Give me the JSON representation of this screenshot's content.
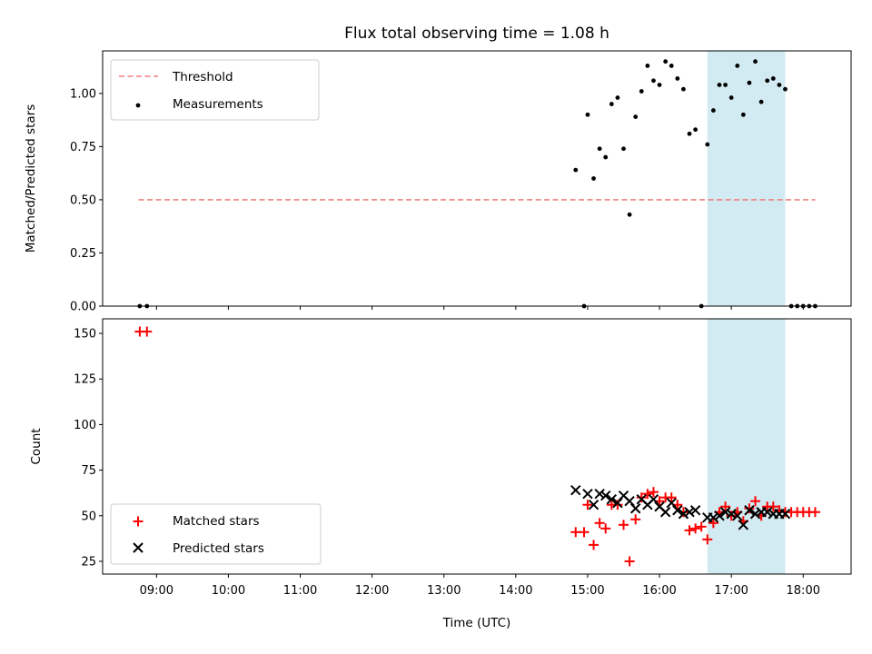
{
  "chart_data": [
    {
      "type": "scatter",
      "title": "Flux total observing time = 1.08 h",
      "xlabel": "",
      "ylabel": "Matched/Predicted stars",
      "xlim": [
        "08:15",
        "18:40"
      ],
      "ylim": [
        0,
        1.2
      ],
      "ytick_values": [
        0.0,
        0.25,
        0.5,
        0.75,
        1.0
      ],
      "ytick_labels": [
        "0.00",
        "0.25",
        "0.50",
        "0.75",
        "1.00"
      ],
      "legend_position": "upper-left",
      "highlight_span": {
        "start": "16:40",
        "end": "17:45",
        "color": "#add8e6"
      },
      "series": [
        {
          "name": "Threshold",
          "kind": "line",
          "style": "dashed",
          "color": "#f08080",
          "points": [
            {
              "x": "08:45",
              "y": 0.5
            },
            {
              "x": "18:10",
              "y": 0.5
            }
          ]
        },
        {
          "name": "Measurements",
          "kind": "points",
          "color": "#000000",
          "points": [
            {
              "x": "08:46",
              "y": 0.0
            },
            {
              "x": "08:52",
              "y": 0.0
            },
            {
              "x": "14:50",
              "y": 0.64
            },
            {
              "x": "14:57",
              "y": 0.0
            },
            {
              "x": "15:00",
              "y": 0.9
            },
            {
              "x": "15:05",
              "y": 0.6
            },
            {
              "x": "15:10",
              "y": 0.74
            },
            {
              "x": "15:15",
              "y": 0.7
            },
            {
              "x": "15:20",
              "y": 0.95
            },
            {
              "x": "15:25",
              "y": 0.98
            },
            {
              "x": "15:30",
              "y": 0.74
            },
            {
              "x": "15:35",
              "y": 0.43
            },
            {
              "x": "15:40",
              "y": 0.89
            },
            {
              "x": "15:45",
              "y": 1.01
            },
            {
              "x": "15:50",
              "y": 1.13
            },
            {
              "x": "15:55",
              "y": 1.06
            },
            {
              "x": "16:00",
              "y": 1.04
            },
            {
              "x": "16:05",
              "y": 1.15
            },
            {
              "x": "16:10",
              "y": 1.13
            },
            {
              "x": "16:15",
              "y": 1.07
            },
            {
              "x": "16:20",
              "y": 1.02
            },
            {
              "x": "16:25",
              "y": 0.81
            },
            {
              "x": "16:30",
              "y": 0.83
            },
            {
              "x": "16:35",
              "y": 0.0
            },
            {
              "x": "16:40",
              "y": 0.76
            },
            {
              "x": "16:45",
              "y": 0.92
            },
            {
              "x": "16:50",
              "y": 1.04
            },
            {
              "x": "16:55",
              "y": 1.04
            },
            {
              "x": "17:00",
              "y": 0.98
            },
            {
              "x": "17:05",
              "y": 1.13
            },
            {
              "x": "17:10",
              "y": 0.9
            },
            {
              "x": "17:15",
              "y": 1.05
            },
            {
              "x": "17:20",
              "y": 1.15
            },
            {
              "x": "17:25",
              "y": 0.96
            },
            {
              "x": "17:30",
              "y": 1.06
            },
            {
              "x": "17:35",
              "y": 1.07
            },
            {
              "x": "17:40",
              "y": 1.04
            },
            {
              "x": "17:45",
              "y": 1.02
            },
            {
              "x": "17:50",
              "y": 0.0
            },
            {
              "x": "17:55",
              "y": 0.0
            },
            {
              "x": "18:00",
              "y": 0.0
            },
            {
              "x": "18:05",
              "y": 0.0
            },
            {
              "x": "18:10",
              "y": 0.0
            }
          ]
        }
      ]
    },
    {
      "type": "scatter",
      "title": "",
      "xlabel": "Time (UTC)",
      "ylabel": "Count",
      "xlim": [
        "08:15",
        "18:40"
      ],
      "ylim": [
        18,
        158
      ],
      "ytick_values": [
        25,
        50,
        75,
        100,
        125,
        150
      ],
      "ytick_labels": [
        "25",
        "50",
        "75",
        "100",
        "125",
        "150"
      ],
      "xtick_values": [
        "09:00",
        "10:00",
        "11:00",
        "12:00",
        "13:00",
        "14:00",
        "15:00",
        "16:00",
        "17:00",
        "18:00"
      ],
      "xtick_labels": [
        "09:00",
        "10:00",
        "11:00",
        "12:00",
        "13:00",
        "14:00",
        "15:00",
        "16:00",
        "17:00",
        "18:00"
      ],
      "legend_position": "lower-left",
      "highlight_span": {
        "start": "16:40",
        "end": "17:45",
        "color": "#add8e6"
      },
      "series": [
        {
          "name": "Matched stars",
          "marker": "plus",
          "color": "#ff0000",
          "points": [
            {
              "x": "08:46",
              "y": 151
            },
            {
              "x": "08:52",
              "y": 151
            },
            {
              "x": "14:50",
              "y": 41
            },
            {
              "x": "14:57",
              "y": 41
            },
            {
              "x": "15:00",
              "y": 56
            },
            {
              "x": "15:05",
              "y": 34
            },
            {
              "x": "15:10",
              "y": 46
            },
            {
              "x": "15:15",
              "y": 43
            },
            {
              "x": "15:20",
              "y": 56
            },
            {
              "x": "15:25",
              "y": 56
            },
            {
              "x": "15:30",
              "y": 45
            },
            {
              "x": "15:35",
              "y": 25
            },
            {
              "x": "15:40",
              "y": 48
            },
            {
              "x": "15:45",
              "y": 60
            },
            {
              "x": "15:50",
              "y": 62
            },
            {
              "x": "15:55",
              "y": 63
            },
            {
              "x": "16:00",
              "y": 58
            },
            {
              "x": "16:05",
              "y": 60
            },
            {
              "x": "16:10",
              "y": 60
            },
            {
              "x": "16:15",
              "y": 56
            },
            {
              "x": "16:20",
              "y": 52
            },
            {
              "x": "16:25",
              "y": 42
            },
            {
              "x": "16:30",
              "y": 43
            },
            {
              "x": "16:35",
              "y": 44
            },
            {
              "x": "16:40",
              "y": 37
            },
            {
              "x": "16:45",
              "y": 46
            },
            {
              "x": "16:50",
              "y": 52
            },
            {
              "x": "16:55",
              "y": 55
            },
            {
              "x": "17:00",
              "y": 50
            },
            {
              "x": "17:05",
              "y": 52
            },
            {
              "x": "17:10",
              "y": 47
            },
            {
              "x": "17:15",
              "y": 54
            },
            {
              "x": "17:20",
              "y": 58
            },
            {
              "x": "17:25",
              "y": 50
            },
            {
              "x": "17:30",
              "y": 55
            },
            {
              "x": "17:35",
              "y": 55
            },
            {
              "x": "17:40",
              "y": 53
            },
            {
              "x": "17:45",
              "y": 52
            },
            {
              "x": "17:50",
              "y": 52
            },
            {
              "x": "17:55",
              "y": 52
            },
            {
              "x": "18:00",
              "y": 52
            },
            {
              "x": "18:05",
              "y": 52
            },
            {
              "x": "18:10",
              "y": 52
            }
          ]
        },
        {
          "name": "Predicted stars",
          "marker": "x",
          "color": "#000000",
          "points": [
            {
              "x": "14:50",
              "y": 64
            },
            {
              "x": "15:00",
              "y": 62
            },
            {
              "x": "15:05",
              "y": 56
            },
            {
              "x": "15:10",
              "y": 62
            },
            {
              "x": "15:15",
              "y": 61
            },
            {
              "x": "15:20",
              "y": 59
            },
            {
              "x": "15:25",
              "y": 57
            },
            {
              "x": "15:30",
              "y": 61
            },
            {
              "x": "15:35",
              "y": 58
            },
            {
              "x": "15:40",
              "y": 54
            },
            {
              "x": "15:45",
              "y": 59
            },
            {
              "x": "15:50",
              "y": 56
            },
            {
              "x": "15:55",
              "y": 59
            },
            {
              "x": "16:00",
              "y": 55
            },
            {
              "x": "16:05",
              "y": 52
            },
            {
              "x": "16:10",
              "y": 57
            },
            {
              "x": "16:15",
              "y": 53
            },
            {
              "x": "16:20",
              "y": 51
            },
            {
              "x": "16:25",
              "y": 52
            },
            {
              "x": "16:30",
              "y": 53
            },
            {
              "x": "16:40",
              "y": 49
            },
            {
              "x": "16:45",
              "y": 49
            },
            {
              "x": "16:50",
              "y": 50
            },
            {
              "x": "16:55",
              "y": 52
            },
            {
              "x": "17:00",
              "y": 51
            },
            {
              "x": "17:05",
              "y": 50
            },
            {
              "x": "17:10",
              "y": 45
            },
            {
              "x": "17:15",
              "y": 53
            },
            {
              "x": "17:20",
              "y": 51
            },
            {
              "x": "17:25",
              "y": 52
            },
            {
              "x": "17:30",
              "y": 52
            },
            {
              "x": "17:35",
              "y": 51
            },
            {
              "x": "17:40",
              "y": 51
            },
            {
              "x": "17:45",
              "y": 51
            }
          ]
        }
      ]
    }
  ]
}
